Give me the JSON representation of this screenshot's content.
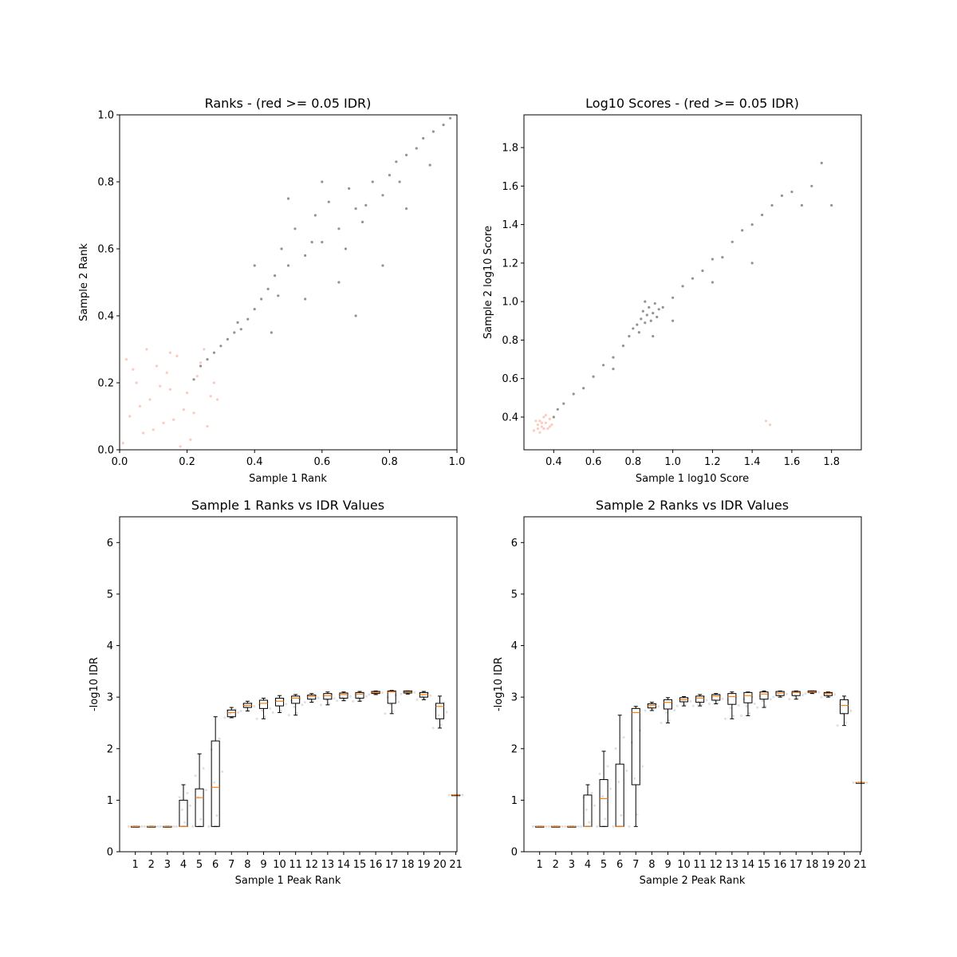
{
  "chart_data": [
    {
      "type": "scatter",
      "title": "Ranks - (red >= 0.05 IDR)",
      "xlabel": "Sample 1 Rank",
      "ylabel": "Sample 2 Rank",
      "xlim": [
        0.0,
        1.0
      ],
      "ylim": [
        0.0,
        1.0
      ],
      "xticks": [
        "0.0",
        "0.2",
        "0.4",
        "0.6",
        "0.8",
        "1.0"
      ],
      "yticks": [
        "0.0",
        "0.2",
        "0.4",
        "0.6",
        "0.8",
        "1.0"
      ],
      "grid": false,
      "point_colors": {
        "pass": "#3a3a3a",
        "fail": "#fa8a6c"
      },
      "series": [
        {
          "key": "pass",
          "points": [
            [
              0.22,
              0.21
            ],
            [
              0.24,
              0.25
            ],
            [
              0.26,
              0.27
            ],
            [
              0.28,
              0.29
            ],
            [
              0.3,
              0.31
            ],
            [
              0.32,
              0.33
            ],
            [
              0.34,
              0.35
            ],
            [
              0.36,
              0.36
            ],
            [
              0.38,
              0.39
            ],
            [
              0.4,
              0.42
            ],
            [
              0.42,
              0.45
            ],
            [
              0.44,
              0.48
            ],
            [
              0.46,
              0.52
            ],
            [
              0.48,
              0.6
            ],
            [
              0.5,
              0.55
            ],
            [
              0.52,
              0.66
            ],
            [
              0.55,
              0.58
            ],
            [
              0.58,
              0.7
            ],
            [
              0.6,
              0.62
            ],
            [
              0.62,
              0.74
            ],
            [
              0.65,
              0.66
            ],
            [
              0.68,
              0.78
            ],
            [
              0.7,
              0.72
            ],
            [
              0.72,
              0.68
            ],
            [
              0.75,
              0.8
            ],
            [
              0.78,
              0.76
            ],
            [
              0.8,
              0.82
            ],
            [
              0.82,
              0.86
            ],
            [
              0.85,
              0.88
            ],
            [
              0.88,
              0.9
            ],
            [
              0.9,
              0.93
            ],
            [
              0.93,
              0.95
            ],
            [
              0.96,
              0.97
            ],
            [
              0.98,
              0.99
            ],
            [
              0.45,
              0.35
            ],
            [
              0.55,
              0.45
            ],
            [
              0.65,
              0.5
            ],
            [
              0.7,
              0.4
            ],
            [
              0.5,
              0.75
            ],
            [
              0.4,
              0.55
            ],
            [
              0.6,
              0.8
            ],
            [
              0.78,
              0.55
            ],
            [
              0.85,
              0.72
            ],
            [
              0.92,
              0.85
            ],
            [
              0.35,
              0.38
            ],
            [
              0.47,
              0.46
            ],
            [
              0.57,
              0.62
            ],
            [
              0.67,
              0.6
            ],
            [
              0.73,
              0.73
            ],
            [
              0.83,
              0.8
            ]
          ]
        },
        {
          "key": "fail",
          "points": [
            [
              0.01,
              0.02
            ],
            [
              0.03,
              0.1
            ],
            [
              0.05,
              0.2
            ],
            [
              0.07,
              0.05
            ],
            [
              0.09,
              0.15
            ],
            [
              0.11,
              0.25
            ],
            [
              0.13,
              0.08
            ],
            [
              0.15,
              0.18
            ],
            [
              0.17,
              0.28
            ],
            [
              0.19,
              0.12
            ],
            [
              0.21,
              0.03
            ],
            [
              0.23,
              0.22
            ],
            [
              0.25,
              0.3
            ],
            [
              0.27,
              0.16
            ],
            [
              0.02,
              0.27
            ],
            [
              0.06,
              0.13
            ],
            [
              0.1,
              0.06
            ],
            [
              0.14,
              0.23
            ],
            [
              0.18,
              0.01
            ],
            [
              0.22,
              0.11
            ],
            [
              0.26,
              0.07
            ],
            [
              0.08,
              0.3
            ],
            [
              0.12,
              0.19
            ],
            [
              0.16,
              0.09
            ],
            [
              0.2,
              0.17
            ],
            [
              0.24,
              0.26
            ],
            [
              0.04,
              0.24
            ],
            [
              0.28,
              0.2
            ],
            [
              0.29,
              0.15
            ],
            [
              0.15,
              0.29
            ]
          ]
        }
      ]
    },
    {
      "type": "scatter",
      "title": "Log10 Scores - (red >= 0.05 IDR)",
      "xlabel": "Sample 1 log10 Score",
      "ylabel": "Sample 2 log10 Score",
      "xlim": [
        0.25,
        1.95
      ],
      "ylim": [
        0.23,
        1.97
      ],
      "xticks": [
        "0.4",
        "0.6",
        "0.8",
        "1.0",
        "1.2",
        "1.4",
        "1.6",
        "1.8"
      ],
      "yticks": [
        "0.4",
        "0.6",
        "0.8",
        "1.0",
        "1.2",
        "1.4",
        "1.6",
        "1.8"
      ],
      "grid": false,
      "series": [
        {
          "key": "pass",
          "points": [
            [
              0.4,
              0.4
            ],
            [
              0.42,
              0.44
            ],
            [
              0.45,
              0.47
            ],
            [
              0.5,
              0.52
            ],
            [
              0.55,
              0.55
            ],
            [
              0.6,
              0.61
            ],
            [
              0.65,
              0.67
            ],
            [
              0.7,
              0.71
            ],
            [
              0.75,
              0.77
            ],
            [
              0.78,
              0.82
            ],
            [
              0.8,
              0.86
            ],
            [
              0.82,
              0.88
            ],
            [
              0.84,
              0.91
            ],
            [
              0.85,
              0.95
            ],
            [
              0.86,
              0.89
            ],
            [
              0.87,
              0.93
            ],
            [
              0.88,
              0.97
            ],
            [
              0.89,
              0.9
            ],
            [
              0.9,
              0.94
            ],
            [
              0.91,
              0.99
            ],
            [
              0.92,
              0.92
            ],
            [
              0.93,
              0.96
            ],
            [
              0.83,
              0.84
            ],
            [
              0.86,
              1.0
            ],
            [
              0.95,
              0.97
            ],
            [
              1.0,
              1.02
            ],
            [
              1.05,
              1.08
            ],
            [
              1.1,
              1.12
            ],
            [
              1.15,
              1.16
            ],
            [
              1.2,
              1.22
            ],
            [
              1.25,
              1.23
            ],
            [
              1.3,
              1.31
            ],
            [
              1.35,
              1.37
            ],
            [
              1.4,
              1.4
            ],
            [
              1.45,
              1.45
            ],
            [
              1.5,
              1.5
            ],
            [
              1.55,
              1.55
            ],
            [
              1.6,
              1.57
            ],
            [
              1.65,
              1.5
            ],
            [
              1.7,
              1.6
            ],
            [
              1.75,
              1.72
            ],
            [
              1.8,
              1.5
            ],
            [
              1.0,
              0.9
            ],
            [
              1.2,
              1.1
            ],
            [
              1.4,
              1.2
            ],
            [
              0.7,
              0.65
            ],
            [
              0.9,
              0.82
            ]
          ]
        },
        {
          "key": "fail",
          "points": [
            [
              0.3,
              0.33
            ],
            [
              0.32,
              0.36
            ],
            [
              0.33,
              0.38
            ],
            [
              0.34,
              0.35
            ],
            [
              0.35,
              0.4
            ],
            [
              0.36,
              0.37
            ],
            [
              0.37,
              0.34
            ],
            [
              0.38,
              0.39
            ],
            [
              0.31,
              0.38
            ],
            [
              0.33,
              0.32
            ],
            [
              0.35,
              0.34
            ],
            [
              0.36,
              0.41
            ],
            [
              0.39,
              0.36
            ],
            [
              0.34,
              0.37
            ],
            [
              0.32,
              0.34
            ],
            [
              0.38,
              0.35
            ],
            [
              1.47,
              0.38
            ],
            [
              1.49,
              0.36
            ]
          ]
        }
      ]
    },
    {
      "type": "box",
      "title": "Sample 1 Ranks vs IDR Values",
      "xlabel": "Sample 1 Peak Rank",
      "ylabel": "-log10 IDR",
      "ylim": [
        0,
        6.5
      ],
      "categories": [
        "1",
        "2",
        "3",
        "4",
        "5",
        "6",
        "7",
        "8",
        "9",
        "10",
        "11",
        "12",
        "13",
        "14",
        "15",
        "16",
        "17",
        "18",
        "19",
        "20",
        "21"
      ],
      "yticks": [
        "0",
        "1",
        "2",
        "3",
        "4",
        "5",
        "6"
      ],
      "grid": false,
      "boxes": [
        {
          "whislo": 0.49,
          "q1": 0.49,
          "med": 0.49,
          "q3": 0.49,
          "whishi": 0.49
        },
        {
          "whislo": 0.49,
          "q1": 0.49,
          "med": 0.49,
          "q3": 0.49,
          "whishi": 0.49
        },
        {
          "whislo": 0.49,
          "q1": 0.49,
          "med": 0.49,
          "q3": 0.49,
          "whishi": 0.49
        },
        {
          "whislo": 0.49,
          "q1": 0.49,
          "med": 0.49,
          "q3": 1.0,
          "whishi": 1.3
        },
        {
          "whislo": 0.49,
          "q1": 0.49,
          "med": 1.05,
          "q3": 1.22,
          "whishi": 1.9
        },
        {
          "whislo": 0.49,
          "q1": 0.49,
          "med": 1.25,
          "q3": 2.15,
          "whishi": 2.62
        },
        {
          "whislo": 2.6,
          "q1": 2.62,
          "med": 2.7,
          "q3": 2.75,
          "whishi": 2.8
        },
        {
          "whislo": 2.73,
          "q1": 2.8,
          "med": 2.84,
          "q3": 2.88,
          "whishi": 2.92
        },
        {
          "whislo": 2.58,
          "q1": 2.78,
          "med": 2.88,
          "q3": 2.94,
          "whishi": 2.98
        },
        {
          "whislo": 2.7,
          "q1": 2.83,
          "med": 2.92,
          "q3": 2.98,
          "whishi": 3.03
        },
        {
          "whislo": 2.65,
          "q1": 2.88,
          "med": 2.98,
          "q3": 3.02,
          "whishi": 3.05
        },
        {
          "whislo": 2.9,
          "q1": 2.96,
          "med": 3.01,
          "q3": 3.04,
          "whishi": 3.07
        },
        {
          "whislo": 2.85,
          "q1": 2.96,
          "med": 3.03,
          "q3": 3.07,
          "whishi": 3.1
        },
        {
          "whislo": 2.93,
          "q1": 2.98,
          "med": 3.05,
          "q3": 3.08,
          "whishi": 3.1
        },
        {
          "whislo": 2.92,
          "q1": 2.98,
          "med": 3.06,
          "q3": 3.09,
          "whishi": 3.11
        },
        {
          "whislo": 3.05,
          "q1": 3.07,
          "med": 3.09,
          "q3": 3.11,
          "whishi": 3.12
        },
        {
          "whislo": 2.68,
          "q1": 2.88,
          "med": 3.1,
          "q3": 3.12,
          "whishi": 3.13
        },
        {
          "whislo": 3.06,
          "q1": 3.08,
          "med": 3.1,
          "q3": 3.12,
          "whishi": 3.12
        },
        {
          "whislo": 2.95,
          "q1": 3.0,
          "med": 3.05,
          "q3": 3.09,
          "whishi": 3.11
        },
        {
          "whislo": 2.4,
          "q1": 2.58,
          "med": 2.82,
          "q3": 2.88,
          "whishi": 3.02
        },
        {
          "whislo": 1.1,
          "q1": 1.1,
          "med": 1.1,
          "q3": 1.1,
          "whishi": 1.1
        }
      ]
    },
    {
      "type": "box",
      "title": "Sample 2 Ranks vs IDR Values",
      "xlabel": "Sample 2 Peak Rank",
      "ylabel": "-log10 IDR",
      "ylim": [
        0,
        6.5
      ],
      "categories": [
        "1",
        "2",
        "3",
        "4",
        "5",
        "6",
        "7",
        "8",
        "9",
        "10",
        "11",
        "12",
        "13",
        "14",
        "15",
        "16",
        "17",
        "18",
        "19",
        "20",
        "21"
      ],
      "yticks": [
        "0",
        "1",
        "2",
        "3",
        "4",
        "5",
        "6"
      ],
      "grid": false,
      "boxes": [
        {
          "whislo": 0.49,
          "q1": 0.49,
          "med": 0.49,
          "q3": 0.49,
          "whishi": 0.49
        },
        {
          "whislo": 0.49,
          "q1": 0.49,
          "med": 0.49,
          "q3": 0.49,
          "whishi": 0.49
        },
        {
          "whislo": 0.49,
          "q1": 0.49,
          "med": 0.49,
          "q3": 0.49,
          "whishi": 0.49
        },
        {
          "whislo": 0.49,
          "q1": 0.49,
          "med": 0.49,
          "q3": 1.1,
          "whishi": 1.3
        },
        {
          "whislo": 0.49,
          "q1": 0.49,
          "med": 1.03,
          "q3": 1.4,
          "whishi": 1.95
        },
        {
          "whislo": 0.49,
          "q1": 0.49,
          "med": 0.49,
          "q3": 1.7,
          "whishi": 2.65
        },
        {
          "whislo": 0.49,
          "q1": 1.3,
          "med": 2.7,
          "q3": 2.78,
          "whishi": 2.82
        },
        {
          "whislo": 2.74,
          "q1": 2.79,
          "med": 2.84,
          "q3": 2.87,
          "whishi": 2.9
        },
        {
          "whislo": 2.5,
          "q1": 2.77,
          "med": 2.9,
          "q3": 2.95,
          "whishi": 2.99
        },
        {
          "whislo": 2.83,
          "q1": 2.91,
          "med": 2.95,
          "q3": 2.99,
          "whishi": 3.01
        },
        {
          "whislo": 2.83,
          "q1": 2.9,
          "med": 2.98,
          "q3": 3.02,
          "whishi": 3.05
        },
        {
          "whislo": 2.87,
          "q1": 2.94,
          "med": 3.02,
          "q3": 3.05,
          "whishi": 3.07
        },
        {
          "whislo": 2.58,
          "q1": 2.86,
          "med": 3.01,
          "q3": 3.07,
          "whishi": 3.1
        },
        {
          "whislo": 2.64,
          "q1": 2.89,
          "med": 3.03,
          "q3": 3.09,
          "whishi": 3.1
        },
        {
          "whislo": 2.8,
          "q1": 2.96,
          "med": 3.06,
          "q3": 3.1,
          "whishi": 3.12
        },
        {
          "whislo": 3.0,
          "q1": 3.03,
          "med": 3.08,
          "q3": 3.11,
          "whishi": 3.12
        },
        {
          "whislo": 2.96,
          "q1": 3.03,
          "med": 3.09,
          "q3": 3.11,
          "whishi": 3.12
        },
        {
          "whislo": 3.07,
          "q1": 3.09,
          "med": 3.1,
          "q3": 3.12,
          "whishi": 3.12
        },
        {
          "whislo": 3.0,
          "q1": 3.03,
          "med": 3.07,
          "q3": 3.09,
          "whishi": 3.1
        },
        {
          "whislo": 2.45,
          "q1": 2.68,
          "med": 2.84,
          "q3": 2.95,
          "whishi": 3.02
        },
        {
          "whislo": 1.34,
          "q1": 1.34,
          "med": 1.34,
          "q3": 1.34,
          "whishi": 1.34
        }
      ]
    }
  ]
}
